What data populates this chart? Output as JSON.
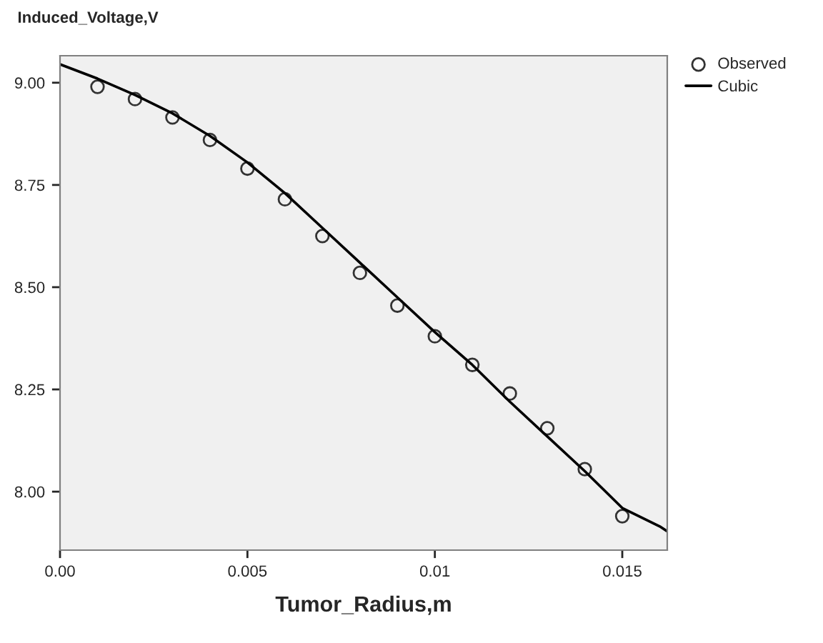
{
  "chart_data": {
    "type": "scatter",
    "ylabel": "Induced_Voltage,V",
    "xlabel": "Tumor_Radius,m",
    "xlim": [
      0,
      0.0162
    ],
    "ylim": [
      7.857,
      9.066
    ],
    "xticks": [
      {
        "value": 0,
        "label": "0.00"
      },
      0.005,
      {
        "value": 0.01,
        "label": "0.01"
      },
      0.015
    ],
    "yticks": [
      {
        "value": 8.0,
        "label": "8.00"
      },
      {
        "value": 8.25,
        "label": "8.25"
      },
      {
        "value": 8.5,
        "label": "8.50"
      },
      {
        "value": 8.75,
        "label": "8.75"
      },
      {
        "value": 9.0,
        "label": "9.00"
      }
    ],
    "grid": false,
    "legend": "top right",
    "series": [
      {
        "name": "Observed",
        "marker": "circle",
        "color": "#333333",
        "x": [
          0.001,
          0.002,
          0.003,
          0.004,
          0.005,
          0.006,
          0.007,
          0.008,
          0.009,
          0.01,
          0.011,
          0.012,
          0.013,
          0.014,
          0.015
        ],
        "values": [
          8.99,
          8.96,
          8.915,
          8.86,
          8.79,
          8.715,
          8.625,
          8.535,
          8.455,
          8.38,
          8.31,
          8.24,
          8.155,
          8.055,
          7.94
        ]
      },
      {
        "name": "Cubic",
        "type": "line",
        "marker": "none",
        "color": "#000000",
        "x": [
          0,
          0.001,
          0.002,
          0.003,
          0.004,
          0.005,
          0.006,
          0.007,
          0.008,
          0.009,
          0.01,
          0.011,
          0.012,
          0.013,
          0.014,
          0.015,
          0.016,
          0.0162
        ],
        "values": [
          9.045,
          9.01,
          8.97,
          8.925,
          8.87,
          8.805,
          8.73,
          8.645,
          8.56,
          8.475,
          8.39,
          8.31,
          8.22,
          8.135,
          8.05,
          7.96,
          7.915,
          7.903
        ]
      }
    ]
  }
}
